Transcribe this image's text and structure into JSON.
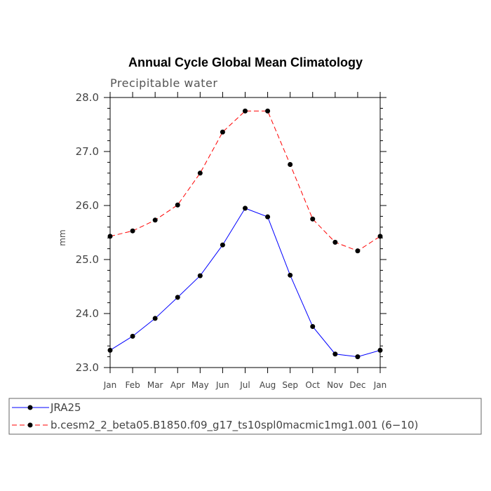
{
  "chart_data": {
    "type": "line",
    "title": "Annual Cycle Global Mean Climatology",
    "subtitle": "Precipitable water",
    "xlabel": "",
    "ylabel": "mm",
    "categories": [
      "Jan",
      "Feb",
      "Mar",
      "Apr",
      "May",
      "Jun",
      "Jul",
      "Aug",
      "Sep",
      "Oct",
      "Nov",
      "Dec",
      "Jan"
    ],
    "ylim": [
      23.0,
      28.0
    ],
    "yticks": [
      "23.0",
      "24.0",
      "25.0",
      "26.0",
      "27.0",
      "28.0"
    ],
    "grid": false,
    "legend_position": "bottom",
    "series": [
      {
        "name": "JRA25",
        "color": "#0000ff",
        "style": "solid",
        "values": [
          23.32,
          23.58,
          23.91,
          24.3,
          24.7,
          25.27,
          25.95,
          25.79,
          24.71,
          23.76,
          23.25,
          23.2,
          23.32
        ]
      },
      {
        "name": "b.cesm2_2_beta05.B1850.f09_g17_ts10spl0macmic1mg1.001 (6−10)",
        "color": "#ff0000",
        "style": "dashed",
        "values": [
          25.43,
          25.53,
          25.73,
          26.01,
          26.6,
          27.36,
          27.75,
          27.75,
          26.76,
          25.75,
          25.32,
          25.16,
          25.43
        ]
      }
    ]
  }
}
